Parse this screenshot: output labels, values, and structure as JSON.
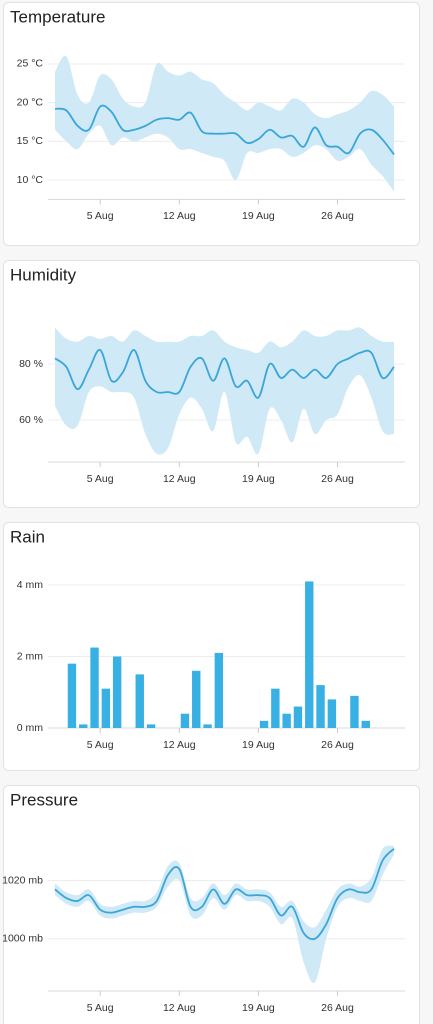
{
  "chart_data": [
    {
      "type": "band-line",
      "title": "Temperature",
      "categories": [
        null,
        null,
        null,
        null,
        "5 Aug",
        null,
        null,
        null,
        null,
        null,
        null,
        "12 Aug",
        null,
        null,
        null,
        null,
        null,
        null,
        "19 Aug",
        null,
        null,
        null,
        null,
        null,
        null,
        "26 Aug",
        null,
        null,
        null,
        null,
        null
      ],
      "values": [
        19.2,
        19,
        17,
        16.5,
        19.5,
        18.8,
        16.5,
        16.5,
        17,
        17.8,
        18,
        17.8,
        18.7,
        16.3,
        16,
        16,
        16,
        14.8,
        15.3,
        16.5,
        15.5,
        15.7,
        14.3,
        16.8,
        14.5,
        14.3,
        13.5,
        16,
        16.5,
        15.2,
        13.3
      ],
      "band_high": [
        24,
        26,
        21,
        20,
        23.5,
        23,
        20.5,
        19.5,
        20,
        25,
        24,
        23.5,
        24,
        23,
        22.5,
        21,
        20,
        19,
        20,
        19.5,
        19,
        20.5,
        20,
        18.5,
        18,
        18.5,
        19,
        20,
        21.5,
        21,
        19.5
      ],
      "band_low": [
        16.5,
        15,
        14,
        16,
        17,
        14.5,
        15.5,
        15,
        15.5,
        16,
        15.5,
        14,
        14,
        13.5,
        13,
        12.5,
        10,
        13.5,
        13.5,
        14,
        14,
        13,
        13.5,
        14.5,
        14,
        12.5,
        13,
        14,
        12,
        10.5,
        8.5
      ],
      "color": "#3aa6d8",
      "band_color": "#cfe9f6",
      "ylim": [
        7.5,
        27.5
      ],
      "yticks": [
        {
          "value": 10,
          "label": "10 °C"
        },
        {
          "value": 15,
          "label": "15 °C"
        },
        {
          "value": 20,
          "label": "20 °C"
        },
        {
          "value": 25,
          "label": "25 °C"
        }
      ],
      "grid": true
    },
    {
      "type": "band-line",
      "title": "Humidity",
      "categories": [
        null,
        null,
        null,
        null,
        "5 Aug",
        null,
        null,
        null,
        null,
        null,
        null,
        "12 Aug",
        null,
        null,
        null,
        null,
        null,
        null,
        "19 Aug",
        null,
        null,
        null,
        null,
        null,
        null,
        "26 Aug",
        null,
        null,
        null,
        null,
        null
      ],
      "values": [
        82,
        79,
        71,
        78,
        85,
        74,
        77,
        85,
        74,
        70,
        70,
        70,
        79,
        82,
        74,
        82,
        72,
        74,
        68,
        80,
        75,
        78,
        75,
        78,
        75,
        80,
        82,
        84,
        84,
        75,
        79
      ],
      "band_high": [
        93,
        89,
        88,
        90,
        89,
        90,
        88,
        92,
        90,
        88,
        88,
        88,
        90,
        90,
        92,
        88,
        86,
        85,
        84,
        88,
        86,
        88,
        92,
        90,
        90,
        92,
        92,
        93,
        90,
        88,
        88
      ],
      "band_low": [
        65,
        58,
        58,
        70,
        72,
        70,
        70,
        68,
        55,
        48,
        50,
        62,
        68,
        64,
        56,
        70,
        52,
        54,
        48,
        64,
        60,
        52,
        64,
        55,
        60,
        62,
        72,
        76,
        68,
        56,
        55
      ],
      "color": "#3aa6d8",
      "band_color": "#cfe9f6",
      "ylim": [
        45,
        100
      ],
      "yticks": [
        {
          "value": 60,
          "label": "60 %"
        },
        {
          "value": 80,
          "label": "80 %"
        }
      ],
      "grid": true
    },
    {
      "type": "bar",
      "title": "Rain",
      "categories": [
        null,
        null,
        null,
        null,
        "5 Aug",
        null,
        null,
        null,
        null,
        null,
        null,
        "12 Aug",
        null,
        null,
        null,
        null,
        null,
        null,
        "19 Aug",
        null,
        null,
        null,
        null,
        null,
        null,
        "26 Aug",
        null,
        null,
        null,
        null,
        null
      ],
      "values": [
        0,
        1.8,
        0.1,
        2.25,
        1.1,
        2,
        0,
        1.5,
        0.1,
        0,
        0,
        0.4,
        1.6,
        0.1,
        2.1,
        0,
        0,
        0,
        0.2,
        1.1,
        0.4,
        0.6,
        4.1,
        1.2,
        0.8,
        0,
        0.9,
        0.2,
        0,
        0,
        0
      ],
      "color": "#38b0e3",
      "ylim": [
        0,
        4.7
      ],
      "yticks": [
        {
          "value": 0,
          "label": "0 mm"
        },
        {
          "value": 2,
          "label": "2 mm"
        },
        {
          "value": 4,
          "label": "4 mm"
        }
      ],
      "grid": true
    },
    {
      "type": "band-line",
      "title": "Pressure",
      "categories": [
        null,
        null,
        null,
        null,
        "5 Aug",
        null,
        null,
        null,
        null,
        null,
        null,
        "12 Aug",
        null,
        null,
        null,
        null,
        null,
        null,
        "19 Aug",
        null,
        null,
        null,
        null,
        null,
        null,
        "26 Aug",
        null,
        null,
        null,
        null,
        null
      ],
      "values": [
        1017,
        1014,
        1013,
        1015,
        1010,
        1009,
        1010,
        1011,
        1011,
        1013,
        1022,
        1024,
        1011,
        1011,
        1017,
        1012,
        1017,
        1015,
        1015,
        1014,
        1008,
        1011,
        1002,
        1000,
        1005,
        1014,
        1017,
        1016,
        1017,
        1027,
        1031
      ],
      "band_high": [
        1019,
        1016,
        1015,
        1017,
        1012,
        1011,
        1012,
        1013,
        1013,
        1016,
        1025,
        1026,
        1014,
        1014,
        1019,
        1015,
        1019,
        1017,
        1017,
        1016,
        1011,
        1013,
        1006,
        1004,
        1010,
        1017,
        1019,
        1018,
        1021,
        1031,
        1032
      ],
      "band_low": [
        1015,
        1012,
        1011,
        1013,
        1008,
        1007,
        1008,
        1009,
        1009,
        1011,
        1018,
        1020,
        1008,
        1008,
        1014,
        1010,
        1015,
        1013,
        1013,
        1011,
        1005,
        1007,
        992,
        985,
        1000,
        1011,
        1014,
        1013,
        1013,
        1022,
        1029
      ],
      "color": "#3aa6d8",
      "band_color": "#cfe9f6",
      "ylim": [
        982,
        1034
      ],
      "yticks": [
        {
          "value": 1000,
          "label": "1000 mb"
        },
        {
          "value": 1020,
          "label": "1020 mb"
        }
      ],
      "grid": true
    }
  ]
}
